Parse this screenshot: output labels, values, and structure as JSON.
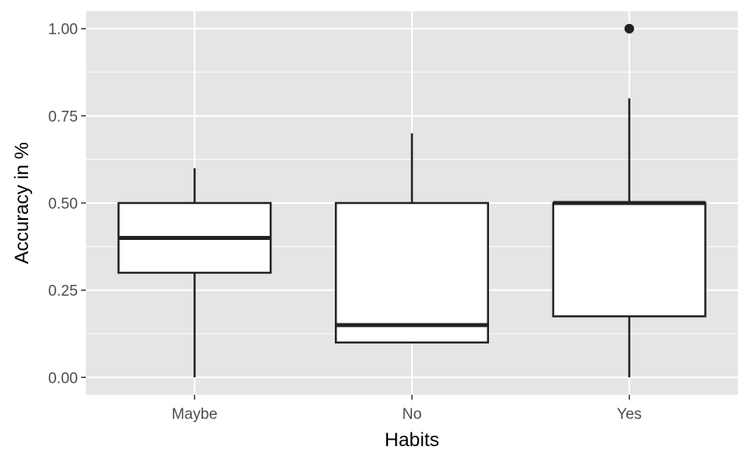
{
  "chart_data": {
    "type": "boxplot",
    "title": "",
    "xlabel": "Habits",
    "ylabel": "Accuracy in %",
    "ylim": [
      -0.05,
      1.05
    ],
    "y_ticks": [
      "0.00",
      "0.25",
      "0.50",
      "0.75",
      "1.00"
    ],
    "categories": [
      "Maybe",
      "No",
      "Yes"
    ],
    "boxes": [
      {
        "category": "Maybe",
        "whisker_low": 0.0,
        "q1": 0.3,
        "median": 0.4,
        "q3": 0.5,
        "whisker_high": 0.6,
        "outliers": []
      },
      {
        "category": "No",
        "whisker_low": 0.1,
        "q1": 0.1,
        "median": 0.15,
        "q3": 0.5,
        "whisker_high": 0.7,
        "outliers": []
      },
      {
        "category": "Yes",
        "whisker_low": 0.0,
        "q1": 0.175,
        "median": 0.5,
        "q3": 0.5,
        "whisker_high": 0.8,
        "outliers": [
          1.0
        ]
      }
    ],
    "grid": true,
    "panel_background": "#e5e5e5",
    "grid_color": "#ffffff",
    "box_fill": "#ffffff",
    "line_color": "#222222"
  }
}
